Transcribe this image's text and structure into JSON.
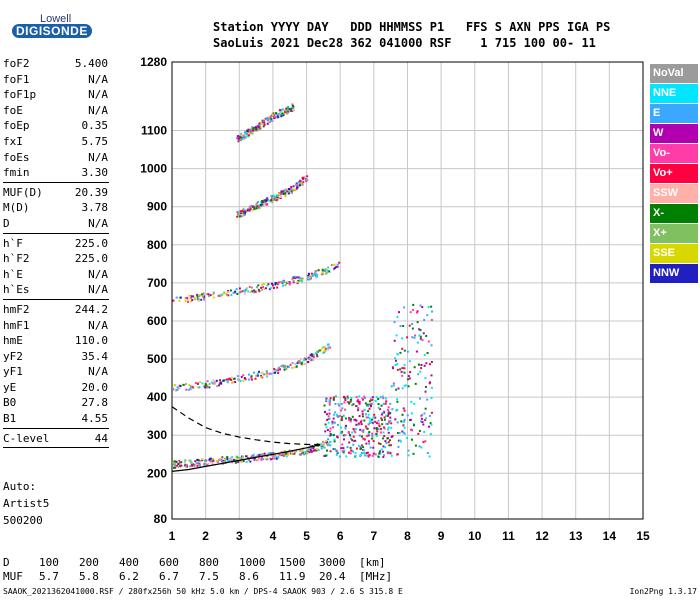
{
  "logo": {
    "line1": "Lowell",
    "line2": "DIGISONDE"
  },
  "header": {
    "line1": "Station YYYY DAY   DDD HHMMSS P1   FFS S AXN PPS IGA PS",
    "line2": "SaoLuis 2021 Dec28 362 041000 RSF    1 715 100 00- 11"
  },
  "params_groups": [
    [
      {
        "label": "foF2",
        "value": "5.400"
      },
      {
        "label": "foF1",
        "value": "N/A"
      },
      {
        "label": "foF1p",
        "value": "N/A"
      },
      {
        "label": "foE",
        "value": "N/A"
      },
      {
        "label": "foEp",
        "value": "0.35"
      },
      {
        "label": "fxI",
        "value": "5.75"
      },
      {
        "label": "foEs",
        "value": "N/A"
      },
      {
        "label": "fmin",
        "value": "3.30"
      }
    ],
    [
      {
        "label": "MUF(D)",
        "value": "20.39"
      },
      {
        "label": "M(D)",
        "value": "3.78"
      },
      {
        "label": "D",
        "value": "N/A"
      }
    ],
    [
      {
        "label": "h`F",
        "value": "225.0"
      },
      {
        "label": "h`F2",
        "value": "225.0"
      },
      {
        "label": "h`E",
        "value": "N/A"
      },
      {
        "label": "h`Es",
        "value": "N/A"
      }
    ],
    [
      {
        "label": "hmF2",
        "value": "244.2"
      },
      {
        "label": "hmF1",
        "value": "N/A"
      },
      {
        "label": "hmE",
        "value": "110.0"
      },
      {
        "label": "yF2",
        "value": "35.4"
      },
      {
        "label": "yF1",
        "value": "N/A"
      },
      {
        "label": "yE",
        "value": "20.0"
      },
      {
        "label": "B0",
        "value": "27.8"
      },
      {
        "label": "B1",
        "value": "4.55"
      }
    ],
    [
      {
        "label": "C-level",
        "value": "44"
      }
    ]
  ],
  "auto": {
    "line1": "Auto:",
    "line2": "Artist5",
    "line3": "500200"
  },
  "legend": [
    {
      "label": "NoVal",
      "color": "#9b9b9b"
    },
    {
      "label": "NNE",
      "color": "#00e6ff"
    },
    {
      "label": "E",
      "color": "#3aa8ff"
    },
    {
      "label": "W",
      "color": "#b000b0"
    },
    {
      "label": "Vo-",
      "color": "#ff3ca8"
    },
    {
      "label": "Vo+",
      "color": "#ff0040"
    },
    {
      "label": "SSW",
      "color": "#ffb0a8"
    },
    {
      "label": "X-",
      "color": "#008000"
    },
    {
      "label": "X+",
      "color": "#80c060"
    },
    {
      "label": "SSE",
      "color": "#d8d800"
    },
    {
      "label": "NNW",
      "color": "#2020c0"
    }
  ],
  "muf_table": {
    "d_label": "D",
    "d_values": [
      "100",
      "200",
      "400",
      "600",
      "800",
      "1000",
      "1500",
      "3000"
    ],
    "d_unit": "[km]",
    "muf_label": "MUF",
    "muf_values": [
      "5.7",
      "5.8",
      "6.2",
      "6.7",
      "7.5",
      "8.6",
      "11.9",
      "20.4"
    ],
    "muf_unit": "[MHz]"
  },
  "footer": {
    "left": "SAAOK_2021362041000.RSF / 280fx256h 50 kHz 5.0 km / DPS-4 SAAOK 903 / 2.6 S 315.8 E",
    "right": "Ion2Png 1.3.17"
  },
  "chart_data": {
    "type": "scatter",
    "xlim": [
      1,
      15
    ],
    "ylim": [
      80,
      1280
    ],
    "x_ticks": [
      1,
      2,
      3,
      4,
      5,
      6,
      7,
      8,
      9,
      10,
      11,
      12,
      13,
      14,
      15
    ],
    "y_ticks": [
      80,
      200,
      300,
      400,
      500,
      600,
      700,
      800,
      900,
      1000,
      1100,
      1280
    ],
    "grid": true,
    "traces": [
      {
        "name": "O",
        "x": [
          1.0,
          1.5,
          2.0,
          2.5,
          3.0,
          3.5,
          4.0,
          4.5,
          5.0,
          5.4
        ],
        "y": [
          205,
          210,
          218,
          226,
          234,
          242,
          250,
          258,
          267,
          275
        ]
      },
      {
        "name": "h1",
        "x": [
          1.0,
          2.0,
          3.0,
          4.0,
          5.0,
          5.7
        ],
        "y": [
          225,
          232,
          240,
          248,
          262,
          285
        ]
      },
      {
        "name": "h2",
        "x": [
          1.0,
          2.0,
          3.0,
          4.0,
          5.0,
          5.7
        ],
        "y": [
          425,
          436,
          450,
          470,
          500,
          540
        ]
      },
      {
        "name": "h3",
        "x": [
          1.0,
          2.0,
          3.0,
          4.0,
          5.0,
          6.0
        ],
        "y": [
          655,
          668,
          680,
          695,
          718,
          750
        ]
      },
      {
        "name": "h4",
        "x": [
          2.9,
          3.5,
          4.0,
          4.6,
          5.0
        ],
        "y": [
          880,
          905,
          925,
          950,
          980
        ]
      },
      {
        "name": "h5",
        "x": [
          2.9,
          3.5,
          4.0,
          4.6
        ],
        "y": [
          1080,
          1110,
          1140,
          1165
        ]
      }
    ],
    "x_series": {
      "x": [
        1.0,
        1.5,
        2.0,
        2.5,
        3.0,
        3.5,
        4.0,
        4.5,
        5.0,
        5.5
      ],
      "y": [
        375,
        345,
        320,
        305,
        295,
        288,
        282,
        278,
        276,
        275
      ]
    }
  }
}
